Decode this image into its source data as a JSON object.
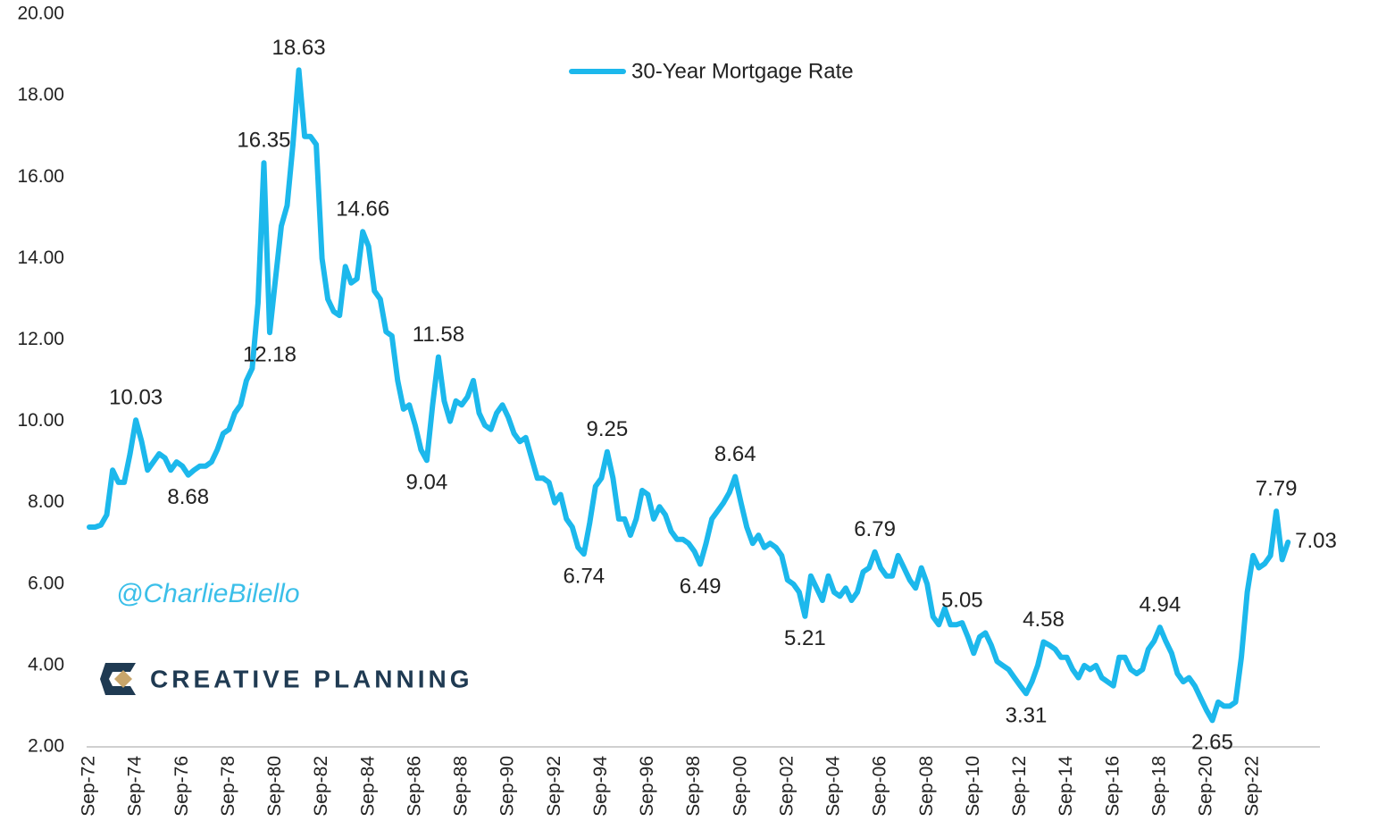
{
  "chart_data": {
    "type": "line",
    "categories": [
      "Sep-72",
      null,
      null,
      null,
      null,
      null,
      null,
      null,
      "Sep-74",
      null,
      null,
      null,
      null,
      null,
      null,
      null,
      "Sep-76",
      null,
      null,
      null,
      null,
      null,
      null,
      null,
      "Sep-78",
      null,
      null,
      null,
      null,
      null,
      null,
      null,
      "Sep-80",
      null,
      null,
      null,
      null,
      null,
      null,
      null,
      "Sep-82",
      null,
      null,
      null,
      null,
      null,
      null,
      null,
      "Sep-84",
      null,
      null,
      null,
      null,
      null,
      null,
      null,
      "Sep-86",
      null,
      null,
      null,
      null,
      null,
      null,
      null,
      "Sep-88",
      null,
      null,
      null,
      null,
      null,
      null,
      null,
      "Sep-90",
      null,
      null,
      null,
      null,
      null,
      null,
      null,
      "Sep-92",
      null,
      null,
      null,
      null,
      null,
      null,
      null,
      "Sep-94",
      null,
      null,
      null,
      null,
      null,
      null,
      null,
      "Sep-96",
      null,
      null,
      null,
      null,
      null,
      null,
      null,
      "Sep-98",
      null,
      null,
      null,
      null,
      null,
      null,
      null,
      "Sep-00",
      null,
      null,
      null,
      null,
      null,
      null,
      null,
      "Sep-02",
      null,
      null,
      null,
      null,
      null,
      null,
      null,
      "Sep-04",
      null,
      null,
      null,
      null,
      null,
      null,
      null,
      "Sep-06",
      null,
      null,
      null,
      null,
      null,
      null,
      null,
      "Sep-08",
      null,
      null,
      null,
      null,
      null,
      null,
      null,
      "Sep-10",
      null,
      null,
      null,
      null,
      null,
      null,
      null,
      "Sep-12",
      null,
      null,
      null,
      null,
      null,
      null,
      null,
      "Sep-14",
      null,
      null,
      null,
      null,
      null,
      null,
      null,
      "Sep-16",
      null,
      null,
      null,
      null,
      null,
      null,
      null,
      "Sep-18",
      null,
      null,
      null,
      null,
      null,
      null,
      null,
      "Sep-20",
      null,
      null,
      null,
      null,
      null,
      null,
      null,
      "Sep-22",
      null,
      null,
      null,
      null,
      null,
      null
    ],
    "series": [
      {
        "name": "30-Year Mortgage Rate",
        "color": "#1cb8ec",
        "values": [
          7.4,
          7.4,
          7.45,
          7.7,
          8.8,
          8.5,
          8.5,
          9.2,
          10.03,
          9.5,
          8.8,
          9.0,
          9.2,
          9.1,
          8.8,
          9.0,
          8.9,
          8.68,
          8.8,
          8.9,
          8.9,
          9.0,
          9.3,
          9.7,
          9.8,
          10.2,
          10.4,
          11.0,
          11.3,
          12.9,
          16.35,
          12.18,
          13.5,
          14.8,
          15.3,
          16.8,
          18.63,
          17.0,
          17.0,
          16.8,
          14.0,
          13.0,
          12.7,
          12.6,
          13.8,
          13.4,
          13.5,
          14.66,
          14.3,
          13.2,
          13.0,
          12.2,
          12.1,
          11.0,
          10.3,
          10.4,
          9.9,
          9.3,
          9.04,
          10.4,
          11.58,
          10.5,
          10.0,
          10.5,
          10.4,
          10.6,
          11.0,
          10.2,
          9.9,
          9.8,
          10.2,
          10.4,
          10.1,
          9.7,
          9.5,
          9.6,
          9.1,
          8.6,
          8.6,
          8.5,
          8.0,
          8.2,
          7.6,
          7.4,
          6.9,
          6.74,
          7.5,
          8.4,
          8.6,
          9.25,
          8.6,
          7.6,
          7.6,
          7.2,
          7.6,
          8.3,
          8.2,
          7.6,
          7.9,
          7.7,
          7.3,
          7.1,
          7.1,
          7.0,
          6.8,
          6.49,
          7.0,
          7.6,
          7.8,
          8.0,
          8.25,
          8.64,
          8.0,
          7.4,
          7.0,
          7.2,
          6.9,
          7.0,
          6.9,
          6.7,
          6.1,
          6.0,
          5.8,
          5.21,
          6.2,
          5.9,
          5.6,
          6.2,
          5.8,
          5.7,
          5.9,
          5.6,
          5.8,
          6.3,
          6.4,
          6.79,
          6.4,
          6.2,
          6.2,
          6.7,
          6.4,
          6.1,
          5.9,
          6.4,
          6.0,
          5.2,
          5.0,
          5.4,
          5.0,
          5.0,
          5.05,
          4.7,
          4.3,
          4.7,
          4.8,
          4.5,
          4.1,
          4.0,
          3.9,
          3.7,
          3.5,
          3.31,
          3.6,
          4.0,
          4.58,
          4.5,
          4.4,
          4.2,
          4.2,
          3.9,
          3.7,
          4.0,
          3.9,
          4.0,
          3.7,
          3.6,
          3.5,
          4.2,
          4.2,
          3.9,
          3.8,
          3.9,
          4.4,
          4.6,
          4.94,
          4.6,
          4.3,
          3.8,
          3.6,
          3.7,
          3.5,
          3.2,
          2.9,
          2.65,
          3.1,
          3.0,
          3.0,
          3.1,
          4.2,
          5.8,
          6.7,
          6.4,
          6.5,
          6.7,
          7.79,
          6.6,
          7.03
        ],
        "value_labels": [
          null,
          null,
          null,
          null,
          null,
          null,
          null,
          null,
          "10.03",
          null,
          null,
          null,
          null,
          null,
          null,
          null,
          null,
          "8.68",
          null,
          null,
          null,
          null,
          null,
          null,
          null,
          null,
          null,
          null,
          null,
          null,
          "16.35",
          "12.18",
          null,
          null,
          null,
          null,
          "18.63",
          null,
          null,
          null,
          null,
          null,
          null,
          null,
          null,
          null,
          null,
          "14.66",
          null,
          null,
          null,
          null,
          null,
          null,
          null,
          null,
          null,
          null,
          "9.04",
          null,
          "11.58",
          null,
          null,
          null,
          null,
          null,
          null,
          null,
          null,
          null,
          null,
          null,
          null,
          null,
          null,
          null,
          null,
          null,
          null,
          null,
          null,
          null,
          null,
          null,
          null,
          "6.74",
          null,
          null,
          null,
          "9.25",
          null,
          null,
          null,
          null,
          null,
          null,
          null,
          null,
          null,
          null,
          null,
          null,
          null,
          null,
          null,
          "6.49",
          null,
          null,
          null,
          null,
          null,
          "8.64",
          null,
          null,
          null,
          null,
          null,
          null,
          null,
          null,
          null,
          null,
          null,
          "5.21",
          null,
          null,
          null,
          null,
          null,
          null,
          null,
          null,
          null,
          null,
          null,
          "6.79",
          null,
          null,
          null,
          null,
          null,
          null,
          null,
          null,
          null,
          null,
          null,
          null,
          null,
          null,
          "5.05",
          null,
          null,
          null,
          null,
          null,
          null,
          null,
          null,
          null,
          null,
          "3.31",
          null,
          null,
          "4.58",
          null,
          null,
          null,
          null,
          null,
          null,
          null,
          null,
          null,
          null,
          null,
          null,
          null,
          null,
          null,
          null,
          null,
          null,
          null,
          "4.94",
          null,
          null,
          null,
          null,
          null,
          null,
          null,
          null,
          "2.65",
          null,
          null,
          null,
          null,
          null,
          null,
          null,
          null,
          null,
          null,
          "7.79",
          null,
          "7.03"
        ]
      }
    ],
    "ylim": [
      2,
      20
    ],
    "yticks": [
      {
        "value": 2,
        "label": "2.00"
      },
      {
        "value": 4,
        "label": "4.00"
      },
      {
        "value": 6,
        "label": "6.00"
      },
      {
        "value": 8,
        "label": "8.00"
      },
      {
        "value": 10,
        "label": "10.00"
      },
      {
        "value": 12,
        "label": "12.00"
      },
      {
        "value": 14,
        "label": "14.00"
      },
      {
        "value": 16,
        "label": "16.00"
      },
      {
        "value": 18,
        "label": "18.00"
      },
      {
        "value": 20,
        "label": "20.00"
      }
    ],
    "legend": "top",
    "watermark": "@CharlieBilello",
    "logo_text": "CREATIVE PLANNING"
  }
}
